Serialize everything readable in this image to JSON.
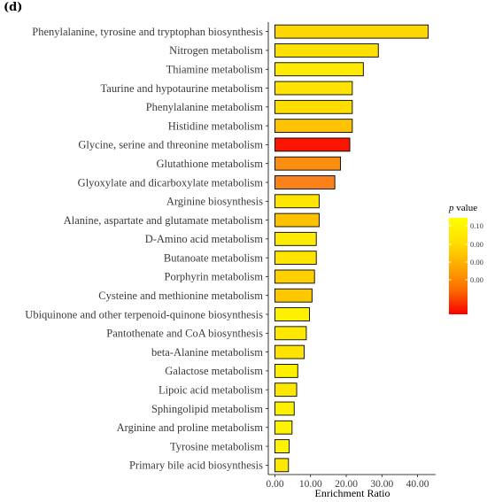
{
  "panel_label": "(d)",
  "chart_data": {
    "type": "bar",
    "orientation": "horizontal",
    "xlabel": "Enrichment Ratio",
    "xlim": [
      0,
      44
    ],
    "xticks": [
      0,
      10,
      20,
      30,
      40
    ],
    "xtick_labels": [
      "0.00",
      "10.00",
      "20.00",
      "30.00",
      "40.00"
    ],
    "grid": false,
    "categories": [
      "Phenylalanine, tyrosine and tryptophan biosynthesis",
      "Nitrogen metabolism",
      "Thiamine metabolism",
      "Taurine and hypotaurine metabolism",
      "Phenylalanine metabolism",
      "Histidine metabolism",
      "Glycine, serine and threonine metabolism",
      "Glutathione metabolism",
      "Glyoxylate and dicarboxylate metabolism",
      "Arginine biosynthesis",
      "Alanine, aspartate and glutamate metabolism",
      "D-Amino acid metabolism",
      "Butanoate metabolism",
      "Porphyrin metabolism",
      "Cysteine and methionine metabolism",
      "Ubiquinone and other terpenoid-quinone biosynthesis",
      "Pantothenate and CoA biosynthesis",
      "beta-Alanine metabolism",
      "Galactose metabolism",
      "Lipoic acid metabolism",
      "Sphingolipid metabolism",
      "Arginine and proline metabolism",
      "Tyrosine metabolism",
      "Primary bile acid biosynthesis"
    ],
    "values": [
      43.0,
      29.0,
      24.8,
      21.7,
      21.7,
      21.7,
      21.0,
      18.4,
      16.8,
      12.4,
      12.4,
      11.6,
      11.6,
      11.1,
      10.4,
      9.7,
      8.8,
      8.2,
      6.4,
      6.1,
      5.4,
      4.8,
      4.0,
      3.8
    ],
    "colors": [
      "#fed700",
      "#fee000",
      "#fee900",
      "#fee300",
      "#fedd00",
      "#fec200",
      "#fc1500",
      "#fa8e10",
      "#f9821b",
      "#fee600",
      "#fec200",
      "#fee900",
      "#fee400",
      "#fed000",
      "#fec800",
      "#fef100",
      "#fee700",
      "#fee300",
      "#fef000",
      "#fee700",
      "#fef100",
      "#fef300",
      "#fef200",
      "#fee700"
    ],
    "legend": {
      "title_italic": "p",
      "title_rest": " value",
      "tick_labels": [
        "0.10",
        "0.00",
        "0.00",
        "0.00"
      ],
      "colors_top_to_bottom": [
        "#ffff00",
        "#fee000",
        "#fdaa00",
        "#fb6a00",
        "#f70000"
      ],
      "placement": "right"
    }
  }
}
